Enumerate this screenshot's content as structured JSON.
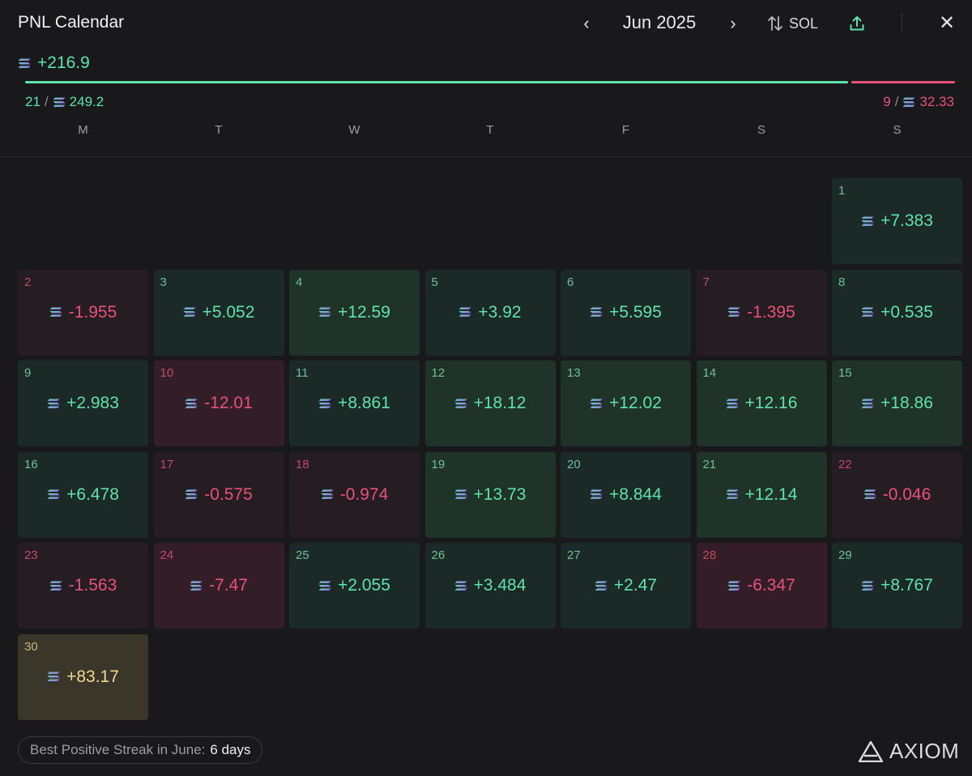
{
  "header": {
    "title": "PNL Calendar",
    "month_label": "Jun 2025",
    "currency_label": "SOL",
    "prev_icon": "chevron-left-icon",
    "next_icon": "chevron-right-icon",
    "share_icon": "share-upload-icon",
    "close_icon": "close-icon"
  },
  "summary": {
    "total": "+216.9",
    "wins_count": "21",
    "wins_amount": "249.2",
    "losses_count": "9",
    "losses_amount": "32.33",
    "win_ratio": 0.885,
    "colors": {
      "positive": "#5fe3ac",
      "negative": "#e8517c",
      "highlight": "#f0d98c"
    }
  },
  "weekdays": [
    "M",
    "T",
    "W",
    "T",
    "F",
    "S",
    "S"
  ],
  "calendar": {
    "first_weekday_index": 6,
    "days": [
      {
        "day": "1",
        "value": "+7.383",
        "kind": "pos"
      },
      {
        "day": "2",
        "value": "-1.955",
        "kind": "neg"
      },
      {
        "day": "3",
        "value": "+5.052",
        "kind": "pos"
      },
      {
        "day": "4",
        "value": "+12.59",
        "kind": "pos-strong"
      },
      {
        "day": "5",
        "value": "+3.92",
        "kind": "pos"
      },
      {
        "day": "6",
        "value": "+5.595",
        "kind": "pos"
      },
      {
        "day": "7",
        "value": "-1.395",
        "kind": "neg"
      },
      {
        "day": "8",
        "value": "+0.535",
        "kind": "pos"
      },
      {
        "day": "9",
        "value": "+2.983",
        "kind": "pos"
      },
      {
        "day": "10",
        "value": "-12.01",
        "kind": "neg-strong"
      },
      {
        "day": "11",
        "value": "+8.861",
        "kind": "pos"
      },
      {
        "day": "12",
        "value": "+18.12",
        "kind": "pos-strong"
      },
      {
        "day": "13",
        "value": "+12.02",
        "kind": "pos-strong"
      },
      {
        "day": "14",
        "value": "+12.16",
        "kind": "pos-strong"
      },
      {
        "day": "15",
        "value": "+18.86",
        "kind": "pos-strong"
      },
      {
        "day": "16",
        "value": "+6.478",
        "kind": "pos"
      },
      {
        "day": "17",
        "value": "-0.575",
        "kind": "neg"
      },
      {
        "day": "18",
        "value": "-0.974",
        "kind": "neg"
      },
      {
        "day": "19",
        "value": "+13.73",
        "kind": "pos-strong"
      },
      {
        "day": "20",
        "value": "+8.844",
        "kind": "pos"
      },
      {
        "day": "21",
        "value": "+12.14",
        "kind": "pos-strong"
      },
      {
        "day": "22",
        "value": "-0.046",
        "kind": "neg"
      },
      {
        "day": "23",
        "value": "-1.563",
        "kind": "neg"
      },
      {
        "day": "24",
        "value": "-7.47",
        "kind": "neg-strong"
      },
      {
        "day": "25",
        "value": "+2.055",
        "kind": "pos"
      },
      {
        "day": "26",
        "value": "+3.484",
        "kind": "pos"
      },
      {
        "day": "27",
        "value": "+2.47",
        "kind": "pos"
      },
      {
        "day": "28",
        "value": "-6.347",
        "kind": "neg-strong"
      },
      {
        "day": "29",
        "value": "+8.767",
        "kind": "pos"
      },
      {
        "day": "30",
        "value": "+83.17",
        "kind": "gold"
      }
    ]
  },
  "footer": {
    "streak_label": "Best Positive Streak in June:",
    "streak_value": "6 days",
    "brand": "AXIOM",
    "brand_icon": "axiom-logo-icon"
  }
}
